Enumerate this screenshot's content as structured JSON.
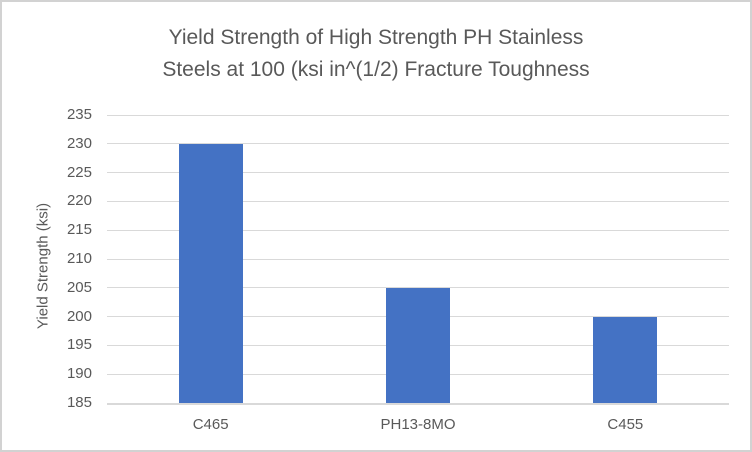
{
  "chart_data": {
    "type": "bar",
    "title": "Yield Strength of High Strength PH Stainless Steels at 100 (ksi in^(1/2) Fracture Toughness",
    "title_lines": [
      "Yield Strength of High Strength PH Stainless",
      "Steels at 100 (ksi in^(1/2) Fracture Toughness"
    ],
    "categories": [
      "C465",
      "PH13-8MO",
      "C455"
    ],
    "values": [
      230,
      205,
      200
    ],
    "xlabel": "",
    "ylabel": "Yield Strength (ksi)",
    "ylim": [
      185,
      235
    ],
    "ytick_step": 5,
    "yticks": [
      185,
      190,
      195,
      200,
      205,
      210,
      215,
      220,
      225,
      230,
      235
    ],
    "grid": true,
    "legend": "none",
    "colors": {
      "bar_fill": "#4472C4",
      "gridline": "#D9D9D9",
      "axis_line": "#D9D9D9",
      "text": "#595959",
      "background": "#FFFFFF",
      "frame_border": "#D2D2D2"
    }
  }
}
